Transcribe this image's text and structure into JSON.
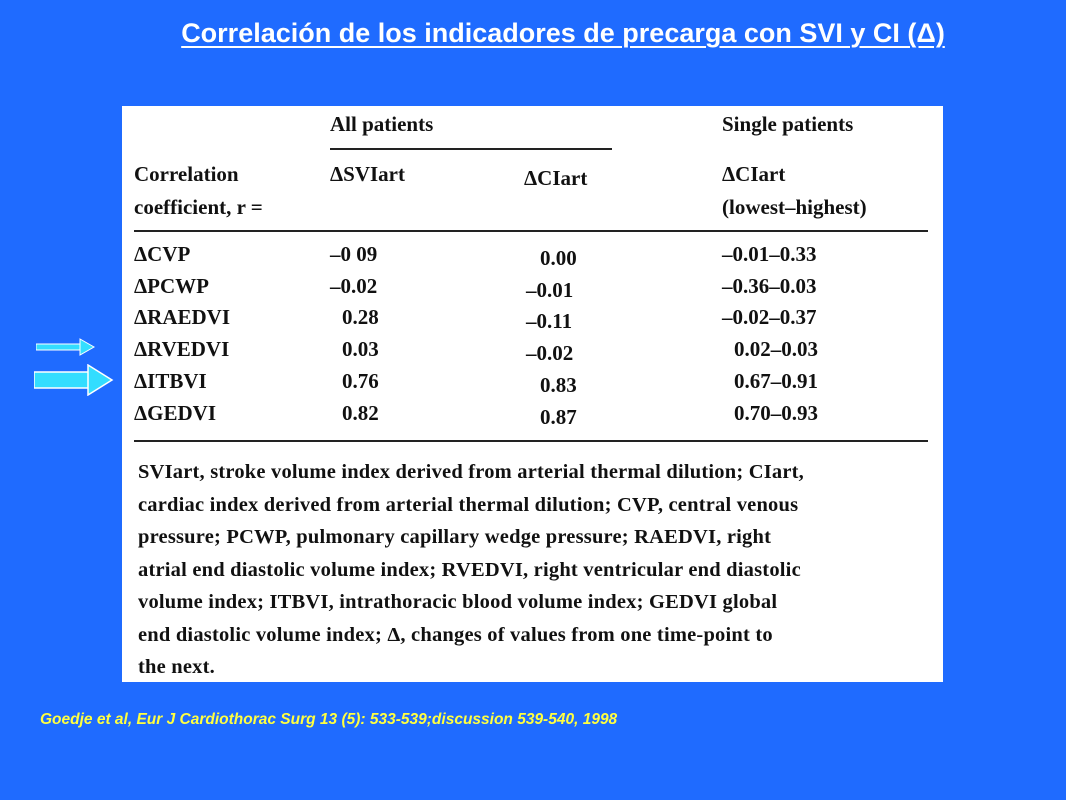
{
  "slide": {
    "title": "Correlación de los indicadores de precarga con SVI y CI (Δ)",
    "background_color": "#1f6bff",
    "citation": "Goedje et al, Eur J Cardiothorac Surg 13 (5): 533-539;discussion 539-540, 1998",
    "citation_color": "#ffff40"
  },
  "table": {
    "group_headers": [
      "All patients",
      "Single patients"
    ],
    "row_header_label": [
      "Correlation",
      "coefficient, r ="
    ],
    "col_headers": [
      "ΔSVIart",
      "ΔCIart",
      "ΔCIart",
      "(lowest–highest)"
    ],
    "rows": [
      {
        "label": "ΔCVP",
        "svi": "–0 09",
        "ci": "0.00",
        "range": "–0.01–0.33"
      },
      {
        "label": "ΔPCWP",
        "svi": "–0.02",
        "ci": "–0.01",
        "range": "–0.36–0.03"
      },
      {
        "label": "ΔRAEDVI",
        "svi": "0.28",
        "ci": "–0.11",
        "range": "–0.02–0.37"
      },
      {
        "label": "ΔRVEDVI",
        "svi": "0.03",
        "ci": "–0.02",
        "range": "0.02–0.03"
      },
      {
        "label": "ΔITBVI",
        "svi": "0.76",
        "ci": "0.83",
        "range": "0.67–0.91"
      },
      {
        "label": "ΔGEDVI",
        "svi": "0.82",
        "ci": "0.87",
        "range": "0.70–0.93"
      }
    ],
    "footnote_lines": [
      "SVIart, stroke volume index derived from arterial thermal dilution; CIart,",
      "cardiac index derived from arterial thermal dilution; CVP, central venous",
      "pressure; PCWP, pulmonary capillary wedge pressure; RAEDVI, right",
      "atrial end diastolic volume index; RVEDVI, right ventricular end diastolic",
      "volume index; ITBVI, intrathoracic blood volume index; GEDVI global",
      "end diastolic volume index; Δ, changes of values from one time-point to",
      "the next."
    ]
  },
  "arrows": [
    {
      "points_to": "ΔRVEDVI",
      "color": "#33ddff",
      "style": "thin-arrow-icon"
    },
    {
      "points_to": "ΔITBVI",
      "color": "#33ddff",
      "style": "thick-arrow-icon"
    }
  ]
}
